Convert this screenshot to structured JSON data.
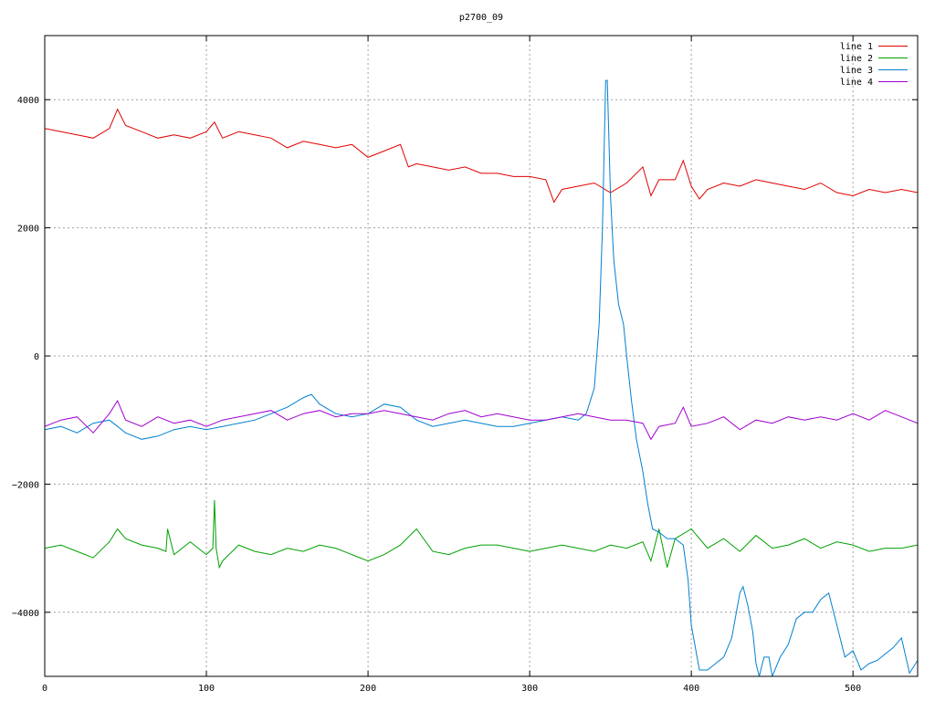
{
  "chart_data": {
    "type": "line",
    "title": "p2700_09",
    "xlabel": "",
    "ylabel": "",
    "xlim": [
      0,
      540
    ],
    "ylim": [
      -5000,
      5000
    ],
    "x_ticks": [
      0,
      100,
      200,
      300,
      400,
      500
    ],
    "y_ticks": [
      -4000,
      -2000,
      0,
      2000,
      4000
    ],
    "x_tick_labels": [
      "0",
      "100",
      "200",
      "300",
      "400",
      "500"
    ],
    "y_tick_labels": [
      "−4000",
      "−2000",
      "0",
      "2000",
      "4000"
    ],
    "grid": true,
    "legend_position": "top-right",
    "series": [
      {
        "name": "line 1",
        "color": "#e00000",
        "x": [
          0,
          10,
          20,
          30,
          40,
          45,
          50,
          60,
          70,
          80,
          90,
          100,
          105,
          110,
          120,
          130,
          140,
          150,
          160,
          170,
          180,
          190,
          200,
          210,
          220,
          225,
          230,
          240,
          250,
          260,
          270,
          280,
          290,
          300,
          310,
          315,
          320,
          330,
          340,
          350,
          360,
          370,
          375,
          380,
          390,
          395,
          400,
          405,
          410,
          420,
          430,
          440,
          450,
          460,
          470,
          480,
          490,
          500,
          510,
          520,
          530,
          540
        ],
        "y": [
          3550,
          3500,
          3450,
          3400,
          3550,
          3850,
          3600,
          3500,
          3400,
          3450,
          3400,
          3500,
          3650,
          3400,
          3500,
          3450,
          3400,
          3250,
          3350,
          3300,
          3250,
          3300,
          3100,
          3200,
          3300,
          2950,
          3000,
          2950,
          2900,
          2950,
          2850,
          2850,
          2800,
          2800,
          2750,
          2400,
          2600,
          2650,
          2700,
          2550,
          2700,
          2950,
          2500,
          2750,
          2750,
          3050,
          2650,
          2450,
          2600,
          2700,
          2650,
          2750,
          2700,
          2650,
          2600,
          2700,
          2550,
          2500,
          2600,
          2550,
          2600,
          2550
        ]
      },
      {
        "name": "line 2",
        "color": "#00a000",
        "x": [
          0,
          10,
          20,
          30,
          40,
          45,
          50,
          60,
          70,
          75,
          76,
          80,
          90,
          100,
          104,
          105,
          106,
          108,
          110,
          120,
          130,
          140,
          150,
          160,
          170,
          180,
          190,
          200,
          210,
          220,
          230,
          240,
          250,
          260,
          270,
          280,
          290,
          300,
          310,
          320,
          330,
          340,
          350,
          360,
          370,
          375,
          380,
          385,
          390,
          400,
          410,
          420,
          430,
          440,
          450,
          460,
          470,
          480,
          490,
          500,
          510,
          520,
          530,
          540
        ],
        "y": [
          -3000,
          -2950,
          -3050,
          -3150,
          -2900,
          -2700,
          -2850,
          -2950,
          -3000,
          -3050,
          -2700,
          -3100,
          -2900,
          -3100,
          -3000,
          -2250,
          -3000,
          -3300,
          -3200,
          -2950,
          -3050,
          -3100,
          -3000,
          -3050,
          -2950,
          -3000,
          -3100,
          -3200,
          -3100,
          -2950,
          -2700,
          -3050,
          -3100,
          -3000,
          -2950,
          -2950,
          -3000,
          -3050,
          -3000,
          -2950,
          -3000,
          -3050,
          -2950,
          -3000,
          -2900,
          -3200,
          -2700,
          -3300,
          -2850,
          -2700,
          -3000,
          -2850,
          -3050,
          -2800,
          -3000,
          -2950,
          -2850,
          -3000,
          -2900,
          -2950,
          -3050,
          -3000,
          -3000,
          -2950
        ]
      },
      {
        "name": "line 3",
        "color": "#0080d0",
        "x": [
          0,
          10,
          20,
          30,
          40,
          50,
          60,
          70,
          80,
          90,
          100,
          110,
          120,
          130,
          140,
          150,
          160,
          165,
          170,
          180,
          190,
          200,
          210,
          220,
          230,
          240,
          250,
          260,
          270,
          280,
          290,
          300,
          310,
          320,
          330,
          335,
          340,
          343,
          345,
          347,
          348,
          350,
          352,
          355,
          358,
          360,
          363,
          366,
          370,
          373,
          376,
          380,
          385,
          390,
          395,
          398,
          400,
          405,
          410,
          415,
          420,
          425,
          430,
          432,
          435,
          438,
          440,
          442,
          445,
          448,
          450,
          455,
          460,
          465,
          470,
          475,
          480,
          485,
          490,
          495,
          500,
          505,
          510,
          515,
          520,
          525,
          530,
          535,
          540
        ],
        "y": [
          -1150,
          -1100,
          -1200,
          -1050,
          -1000,
          -1200,
          -1300,
          -1250,
          -1150,
          -1100,
          -1150,
          -1100,
          -1050,
          -1000,
          -900,
          -800,
          -650,
          -600,
          -750,
          -900,
          -950,
          -900,
          -750,
          -800,
          -1000,
          -1100,
          -1050,
          -1000,
          -1050,
          -1100,
          -1100,
          -1050,
          -1000,
          -950,
          -1000,
          -900,
          -500,
          500,
          2000,
          4300,
          4300,
          2500,
          1500,
          800,
          500,
          0,
          -700,
          -1300,
          -1800,
          -2300,
          -2700,
          -2750,
          -2850,
          -2850,
          -2950,
          -3500,
          -4200,
          -4900,
          -4900,
          -4800,
          -4700,
          -4400,
          -3700,
          -3600,
          -3900,
          -4300,
          -4800,
          -5000,
          -4700,
          -4700,
          -5000,
          -4700,
          -4500,
          -4100,
          -4000,
          -4000,
          -3800,
          -3700,
          -4200,
          -4700,
          -4600,
          -4900,
          -4800,
          -4750,
          -4650,
          -4550,
          -4400,
          -4950,
          -4750
        ]
      },
      {
        "name": "line 4",
        "color": "#a000d0",
        "x": [
          0,
          10,
          20,
          30,
          40,
          45,
          50,
          60,
          70,
          80,
          90,
          100,
          110,
          120,
          130,
          140,
          150,
          160,
          170,
          180,
          190,
          200,
          210,
          220,
          230,
          240,
          250,
          260,
          270,
          280,
          290,
          300,
          310,
          320,
          330,
          340,
          350,
          360,
          370,
          375,
          380,
          390,
          395,
          400,
          410,
          420,
          430,
          440,
          450,
          460,
          470,
          480,
          490,
          500,
          510,
          520,
          530,
          540
        ],
        "y": [
          -1100,
          -1000,
          -950,
          -1200,
          -900,
          -700,
          -1000,
          -1100,
          -950,
          -1050,
          -1000,
          -1100,
          -1000,
          -950,
          -900,
          -850,
          -1000,
          -900,
          -850,
          -950,
          -900,
          -900,
          -850,
          -900,
          -950,
          -1000,
          -900,
          -850,
          -950,
          -900,
          -950,
          -1000,
          -1000,
          -950,
          -900,
          -950,
          -1000,
          -1000,
          -1050,
          -1300,
          -1100,
          -1050,
          -800,
          -1100,
          -1050,
          -950,
          -1150,
          -1000,
          -1050,
          -950,
          -1000,
          -950,
          -1000,
          -900,
          -1000,
          -850,
          -950,
          -1050
        ]
      }
    ]
  }
}
